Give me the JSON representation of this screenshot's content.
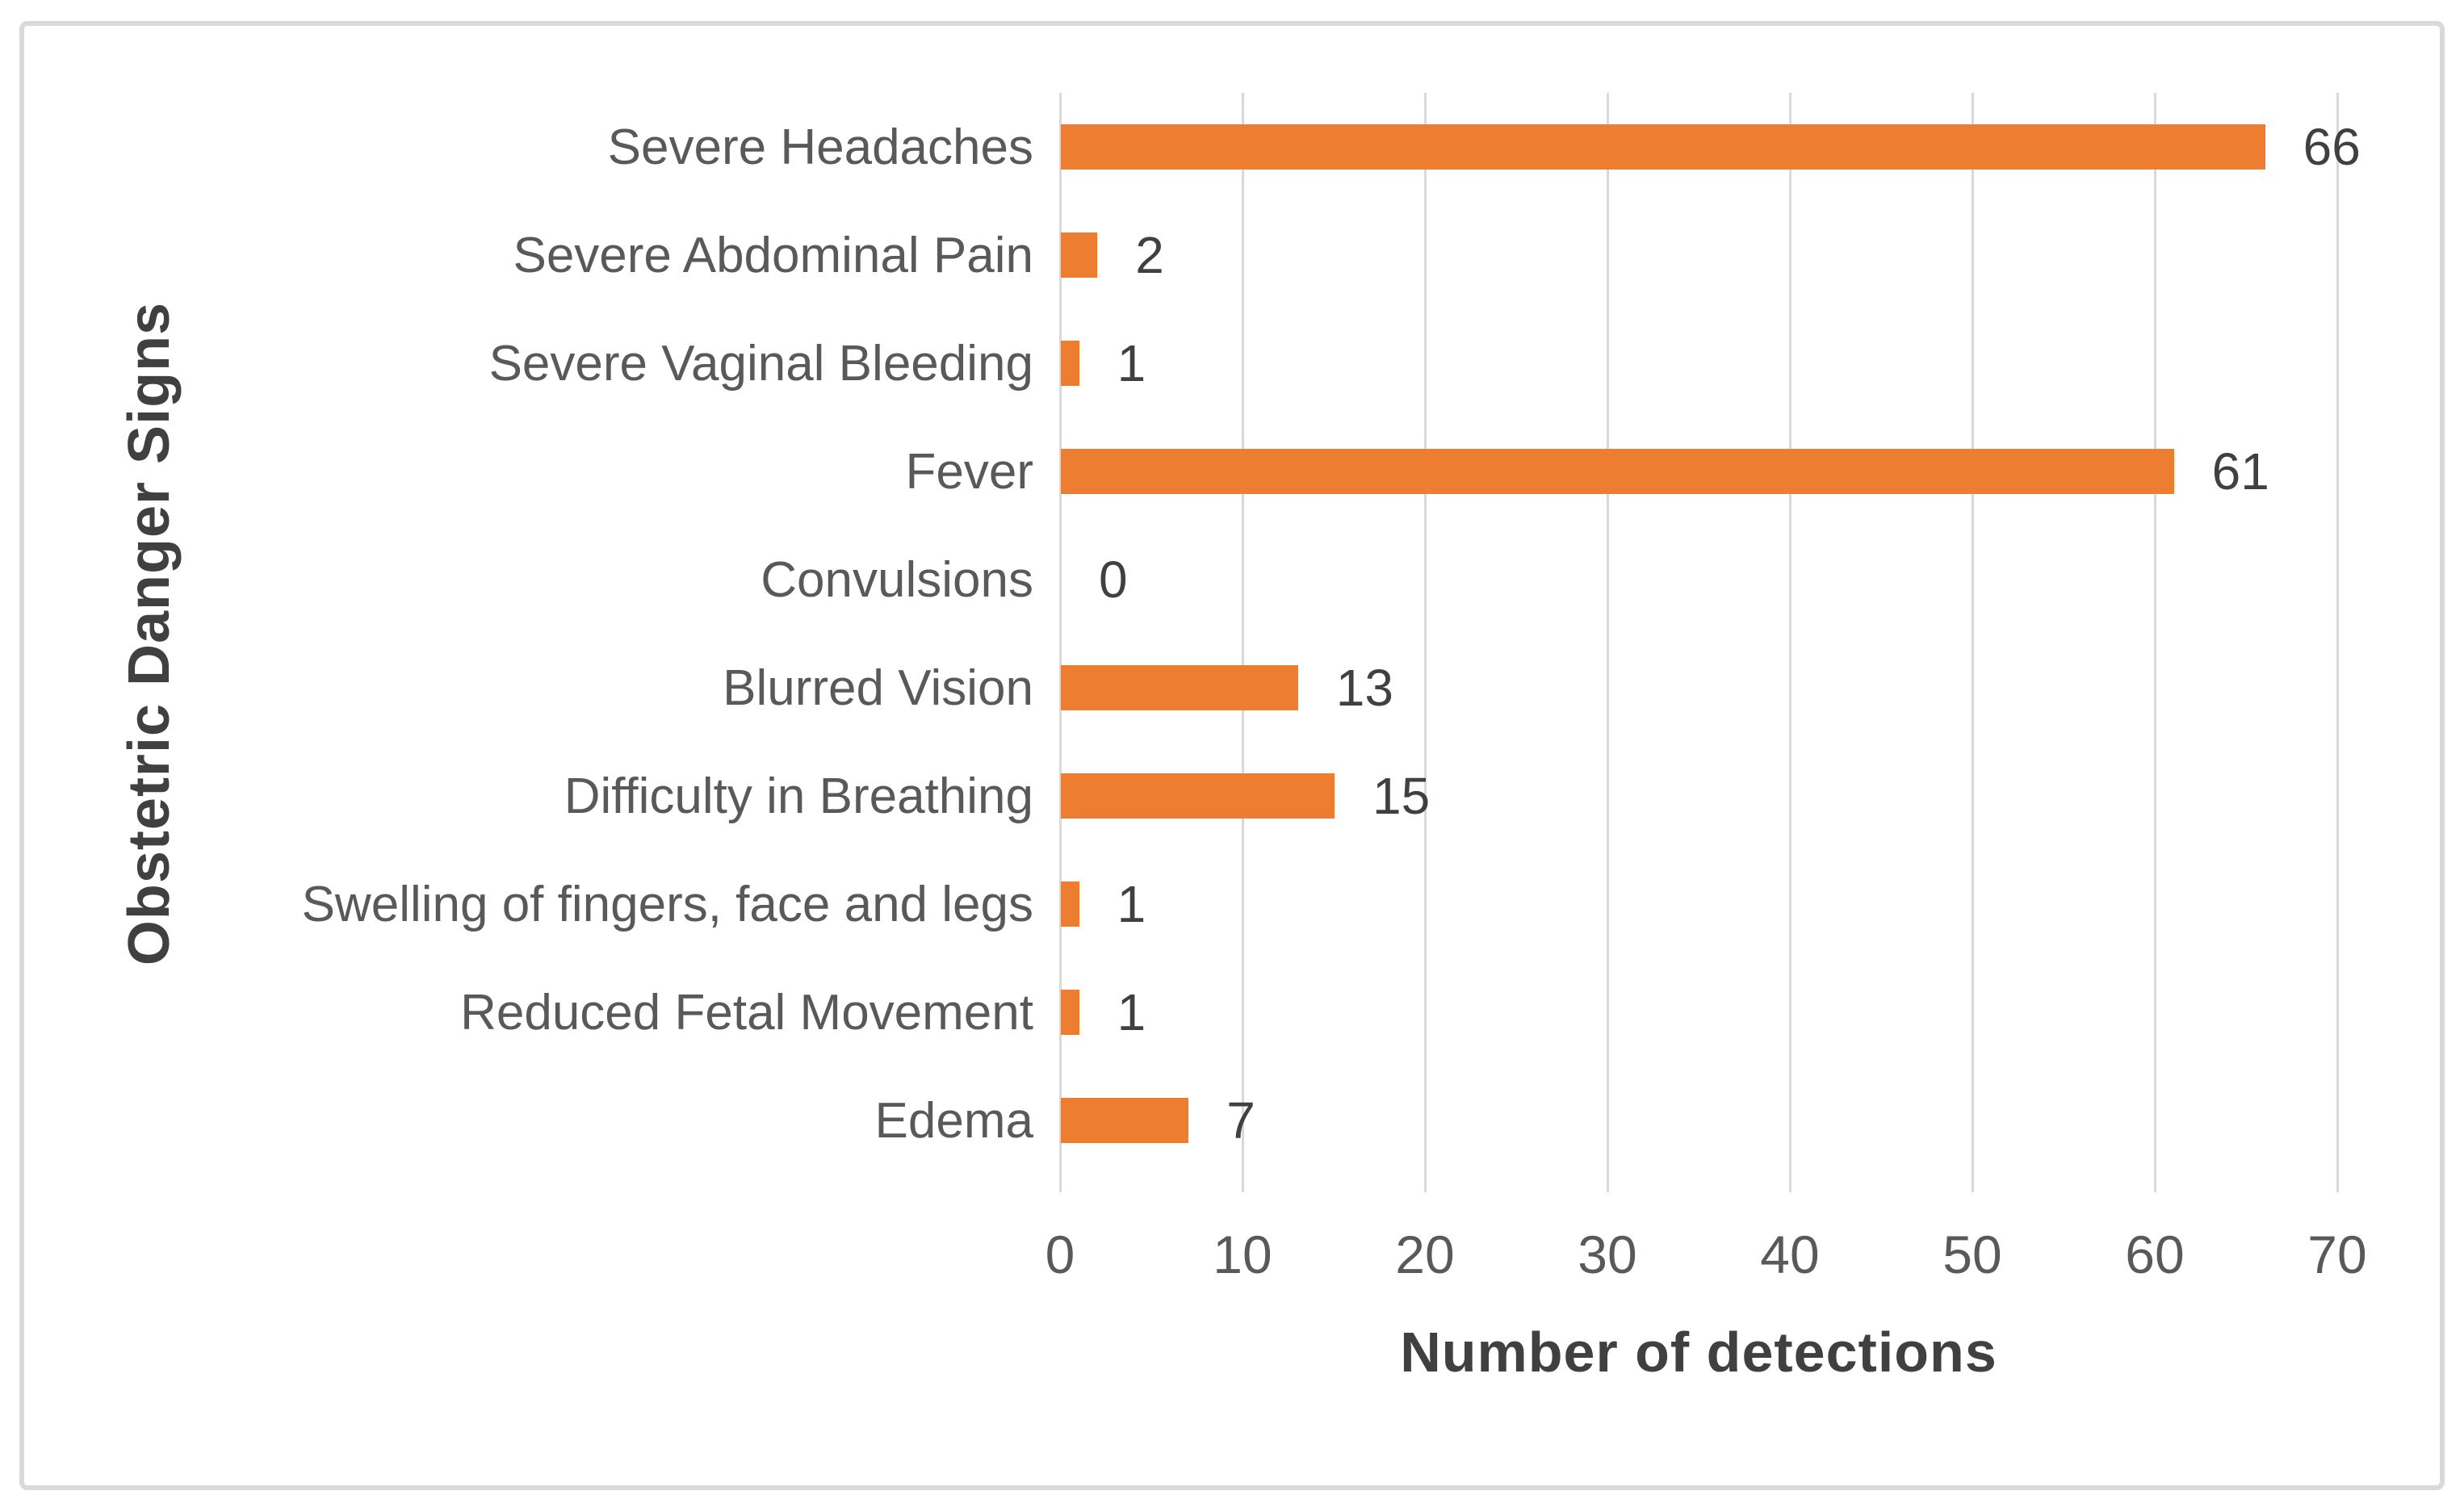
{
  "figure": {
    "border_color": "#D9D9D9",
    "background_color": "#FFFFFF"
  },
  "chart_data": {
    "type": "bar",
    "orientation": "horizontal",
    "title": "",
    "xlabel": "Number of detections",
    "ylabel": "Obstetric Danger Signs",
    "categories": [
      "Severe Headaches",
      "Severe Abdominal Pain",
      "Severe Vaginal Bleeding",
      "Fever",
      "Convulsions",
      "Blurred Vision",
      "Difficulty in Breathing",
      "Swelling of fingers, face and legs",
      "Reduced Fetal Movement",
      "Edema"
    ],
    "values": [
      66,
      2,
      1,
      61,
      0,
      13,
      15,
      1,
      1,
      7
    ],
    "data_labels": [
      "66",
      "2",
      "1",
      "61",
      "0",
      "13",
      "15",
      "1",
      "1",
      "7"
    ],
    "xlim": [
      0,
      70
    ],
    "xticks": [
      0,
      10,
      20,
      30,
      40,
      50,
      60,
      70
    ],
    "grid": true,
    "legend": false,
    "bar_color": "#ED7D31",
    "gridline_color": "#D9D9D9",
    "tick_label_color": "#595959",
    "category_label_color": "#595959",
    "data_label_color": "#404040",
    "axis_title_color": "#404040"
  }
}
